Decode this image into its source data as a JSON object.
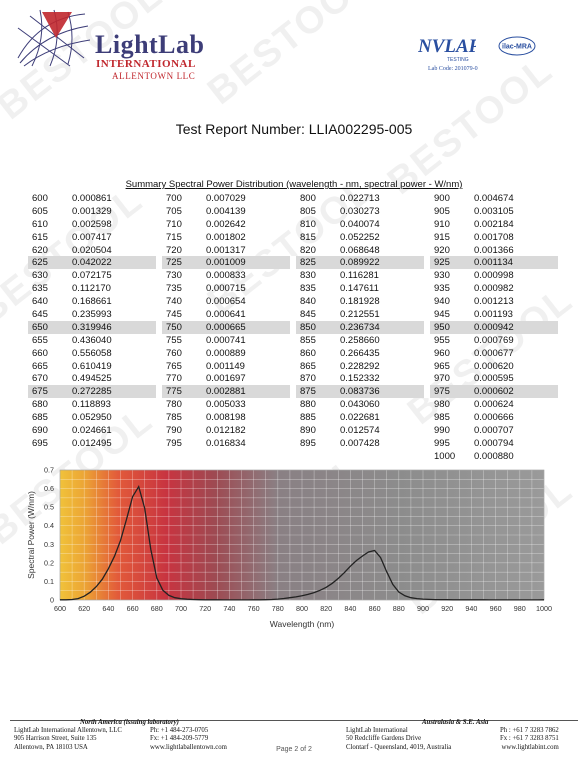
{
  "header": {
    "logo_name": "LightLab",
    "logo_intl": "INTERNATIONAL",
    "logo_city": "ALLENTOWN LLC",
    "nvlap_text": "NVLAP",
    "nvlap_sub": "TESTING",
    "ilac_text": "ilac-MRA",
    "lab_code": "Lab Code: 201079-0"
  },
  "report_title": "Test Report Number: LLIA002295-005",
  "table": {
    "caption": "Summary Spectral Power Distribution (wavelength - nm, spectral power - W/nm)",
    "highlight_rows": [
      5,
      10,
      15
    ],
    "rows": [
      [
        "600",
        "0.000861",
        "700",
        "0.007029",
        "800",
        "0.022713",
        "900",
        "0.004674"
      ],
      [
        "605",
        "0.001329",
        "705",
        "0.004139",
        "805",
        "0.030273",
        "905",
        "0.003105"
      ],
      [
        "610",
        "0.002598",
        "710",
        "0.002642",
        "810",
        "0.040074",
        "910",
        "0.002184"
      ],
      [
        "615",
        "0.007417",
        "715",
        "0.001802",
        "815",
        "0.052252",
        "915",
        "0.001708"
      ],
      [
        "620",
        "0.020504",
        "720",
        "0.001317",
        "820",
        "0.068648",
        "920",
        "0.001366"
      ],
      [
        "625",
        "0.042022",
        "725",
        "0.001009",
        "825",
        "0.089922",
        "925",
        "0.001134"
      ],
      [
        "630",
        "0.072175",
        "730",
        "0.000833",
        "830",
        "0.116281",
        "930",
        "0.000998"
      ],
      [
        "635",
        "0.112170",
        "735",
        "0.000715",
        "835",
        "0.147611",
        "935",
        "0.000982"
      ],
      [
        "640",
        "0.168661",
        "740",
        "0.000654",
        "840",
        "0.181928",
        "940",
        "0.001213"
      ],
      [
        "645",
        "0.235993",
        "745",
        "0.000641",
        "845",
        "0.212551",
        "945",
        "0.001193"
      ],
      [
        "650",
        "0.319946",
        "750",
        "0.000665",
        "850",
        "0.236734",
        "950",
        "0.000942"
      ],
      [
        "655",
        "0.436040",
        "755",
        "0.000741",
        "855",
        "0.258660",
        "955",
        "0.000769"
      ],
      [
        "660",
        "0.556058",
        "760",
        "0.000889",
        "860",
        "0.266435",
        "960",
        "0.000677"
      ],
      [
        "665",
        "0.610419",
        "765",
        "0.001149",
        "865",
        "0.228292",
        "965",
        "0.000620"
      ],
      [
        "670",
        "0.494525",
        "770",
        "0.001697",
        "870",
        "0.152332",
        "970",
        "0.000595"
      ],
      [
        "675",
        "0.272285",
        "775",
        "0.002881",
        "875",
        "0.083736",
        "975",
        "0.000602"
      ],
      [
        "680",
        "0.118893",
        "780",
        "0.005033",
        "880",
        "0.043060",
        "980",
        "0.000624"
      ],
      [
        "685",
        "0.052950",
        "785",
        "0.008198",
        "885",
        "0.022681",
        "985",
        "0.000666"
      ],
      [
        "690",
        "0.024661",
        "790",
        "0.012182",
        "890",
        "0.012574",
        "990",
        "0.000707"
      ],
      [
        "695",
        "0.012495",
        "795",
        "0.016834",
        "895",
        "0.007428",
        "995",
        "0.000794"
      ],
      [
        "",
        "",
        "",
        "",
        "",
        "",
        "1000",
        "0.000880"
      ]
    ]
  },
  "chart_data": {
    "type": "line",
    "xlabel": "Wavelength (nm)",
    "ylabel": "Spectral Power (W/nm)",
    "xlim": [
      600,
      1000
    ],
    "ylim": [
      0,
      0.7
    ],
    "x_ticks": [
      600,
      620,
      640,
      660,
      680,
      700,
      720,
      740,
      760,
      780,
      800,
      820,
      840,
      860,
      880,
      900,
      920,
      940,
      960,
      980,
      1000
    ],
    "y_ticks": [
      0,
      0.1,
      0.2,
      0.3,
      0.4,
      0.5,
      0.6,
      0.7
    ],
    "grid": true,
    "background": "spectrum gradient",
    "series": [
      {
        "x": [
          600,
          605,
          610,
          615,
          620,
          625,
          630,
          635,
          640,
          645,
          650,
          655,
          660,
          665,
          670,
          675,
          680,
          685,
          690,
          695,
          700,
          705,
          710,
          715,
          720,
          725,
          730,
          735,
          740,
          745,
          750,
          755,
          760,
          765,
          770,
          775,
          780,
          785,
          790,
          795,
          800,
          805,
          810,
          815,
          820,
          825,
          830,
          835,
          840,
          845,
          850,
          855,
          860,
          865,
          870,
          875,
          880,
          885,
          890,
          895,
          900,
          905,
          910,
          915,
          920,
          925,
          930,
          935,
          940,
          945,
          950,
          955,
          960,
          965,
          970,
          975,
          980,
          985,
          990,
          995,
          1000
        ],
        "values": [
          0.000861,
          0.001329,
          0.002598,
          0.007417,
          0.020504,
          0.042022,
          0.072175,
          0.11217,
          0.168661,
          0.235993,
          0.319946,
          0.43604,
          0.556058,
          0.610419,
          0.494525,
          0.272285,
          0.118893,
          0.05295,
          0.024661,
          0.012495,
          0.007029,
          0.004139,
          0.002642,
          0.001802,
          0.001317,
          0.001009,
          0.000833,
          0.000715,
          0.000654,
          0.000641,
          0.000665,
          0.000741,
          0.000889,
          0.001149,
          0.001697,
          0.002881,
          0.005033,
          0.008198,
          0.012182,
          0.016834,
          0.022713,
          0.030273,
          0.040074,
          0.052252,
          0.068648,
          0.089922,
          0.116281,
          0.147611,
          0.181928,
          0.212551,
          0.236734,
          0.25866,
          0.266435,
          0.228292,
          0.152332,
          0.083736,
          0.04306,
          0.022681,
          0.012574,
          0.007428,
          0.004674,
          0.003105,
          0.002184,
          0.001708,
          0.001366,
          0.001134,
          0.000998,
          0.000982,
          0.001213,
          0.001193,
          0.000942,
          0.000769,
          0.000677,
          0.00062,
          0.000595,
          0.000602,
          0.000624,
          0.000666,
          0.000707,
          0.000794,
          0.00088
        ]
      }
    ]
  },
  "watermark": "BESTOOL",
  "footer": {
    "left_head": "North America (issuing laboratory)",
    "left_lines": [
      "LightLab International Allentown, LLC",
      "905 Harrison Street, Suite 135",
      "Allentown, PA  18103   USA"
    ],
    "mid_lines": [
      "Ph: +1 484-273-0705",
      "Fx: +1 484-209-5779",
      "www.lightlaballentown.com"
    ],
    "page": "Page 2 of 2",
    "right_head": "Australasia & S.E. Asia",
    "right_lines": [
      "LightLab International",
      "50 Redcliffe Gardens Drive",
      "Clontarf - Queensland, 4019, Australia"
    ],
    "right_contact": [
      "Ph : +61 7 3283 7862",
      "Fx : +61 7 3283 8751",
      "www.lightlabint.com"
    ]
  }
}
